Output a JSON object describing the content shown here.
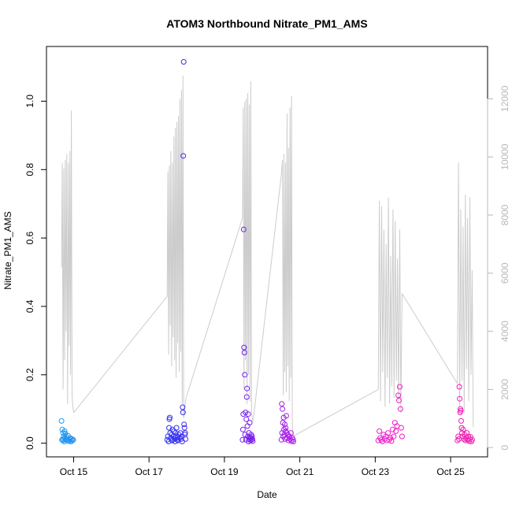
{
  "chart_data": {
    "type": "scatter",
    "title": "ATOM3 Northbound Nitrate_PM1_AMS",
    "xlabel": "Date",
    "ylabel": "Nitrate_PM1_AMS",
    "x_ticks": [
      {
        "value": 14.87,
        "label": "Oct 15"
      },
      {
        "value": 16.87,
        "label": "Oct 17"
      },
      {
        "value": 18.87,
        "label": "Oct 19"
      },
      {
        "value": 20.87,
        "label": "Oct 21"
      },
      {
        "value": 22.87,
        "label": "Oct 23"
      },
      {
        "value": 24.87,
        "label": "Oct 25"
      }
    ],
    "xlim": [
      14.15,
      25.85
    ],
    "ylim": [
      -0.04,
      1.16
    ],
    "y_ticks": [
      0.0,
      0.2,
      0.4,
      0.6,
      0.8,
      1.0
    ],
    "y_tick_labels": [
      "0.0",
      "0.2",
      "0.4",
      "0.6",
      "0.8",
      "1.0"
    ],
    "y2_lim": [
      -320,
      13800
    ],
    "y2_ticks": [
      0,
      2000,
      4000,
      6000,
      8000,
      10000,
      12000
    ],
    "y2_tick_labels": [
      "0",
      "2000",
      "4000",
      "6000",
      "8000",
      "10000",
      "12000"
    ],
    "colors": {
      "altitude_line": "#cccccc",
      "right_axis": "#b8b8b8",
      "points_gradient": [
        "#1e9cf0",
        "#1f3cf0",
        "#5a1ef0",
        "#c41ee8",
        "#f01ec8",
        "#f01eb0"
      ]
    },
    "altitude_series": {
      "name": "altitude",
      "flights": [
        {
          "x": [
            14.55,
            14.57,
            14.59,
            14.61,
            14.63,
            14.65,
            14.67,
            14.69,
            14.71,
            14.73,
            14.75,
            14.77,
            14.79,
            14.81,
            14.83,
            14.85,
            14.87
          ],
          "y": [
            6200,
            9800,
            2000,
            9600,
            3000,
            9900,
            4000,
            10100,
            1500,
            9800,
            3500,
            10200,
            2500,
            11600,
            1800,
            1400,
            1200
          ]
        },
        {
          "x": [
            17.35,
            17.37,
            17.39,
            17.41,
            17.43,
            17.45,
            17.47,
            17.49,
            17.51,
            17.53,
            17.55,
            17.57,
            17.59,
            17.61,
            17.63,
            17.65,
            17.67,
            17.69,
            17.71,
            17.73,
            17.75,
            17.77,
            17.79,
            17.81,
            17.83,
            17.85
          ],
          "y": [
            5200,
            9500,
            3200,
            9700,
            4200,
            10200,
            2800,
            9800,
            3800,
            10700,
            3000,
            11000,
            2400,
            11200,
            3600,
            11400,
            2600,
            12000,
            3300,
            12300,
            1500,
            12800,
            1000,
            1200,
            1500,
            1700
          ]
        },
        {
          "x": [
            19.35,
            19.37,
            19.39,
            19.41,
            19.43,
            19.45,
            19.47,
            19.49,
            19.51,
            19.53,
            19.55,
            19.57,
            19.59,
            19.61,
            19.63
          ],
          "y": [
            7900,
            11700,
            2000,
            11900,
            3000,
            12000,
            1500,
            12200,
            2500,
            11800,
            1600,
            12600,
            1200,
            1000,
            900
          ]
        },
        {
          "x": [
            20.38,
            20.41,
            20.43,
            20.45,
            20.47,
            20.49,
            20.51,
            20.53,
            20.55,
            20.57,
            20.59,
            20.61,
            20.63,
            20.65,
            20.67,
            20.69,
            20.71
          ],
          "y": [
            9400,
            9900,
            1800,
            10100,
            2600,
            9800,
            1900,
            11500,
            2800,
            10300,
            1600,
            11700,
            2400,
            12100,
            800,
            500,
            400
          ]
        },
        {
          "x": [
            22.95,
            22.98,
            23.01,
            23.04,
            23.07,
            23.1,
            23.13,
            23.16,
            23.19,
            23.22,
            23.25,
            23.28,
            23.31,
            23.34,
            23.37,
            23.4,
            23.43,
            23.46,
            23.49,
            23.52,
            23.55,
            23.58
          ],
          "y": [
            2000,
            8500,
            1600,
            8300,
            2600,
            7500,
            1400,
            7000,
            2400,
            8600,
            1500,
            6600,
            2100,
            8200,
            1700,
            7800,
            2300,
            6500,
            1600,
            7500,
            1200,
            5300
          ]
        },
        {
          "x": [
            25.05,
            25.08,
            25.11,
            25.14,
            25.17,
            25.2,
            25.23,
            25.26,
            25.29,
            25.32,
            25.35,
            25.38,
            25.41,
            25.44,
            25.47
          ],
          "y": [
            2200,
            9800,
            1400,
            8200,
            2300,
            7600,
            1200,
            8700,
            2700,
            7900,
            1600,
            8600,
            2500,
            6100,
            700
          ]
        }
      ],
      "connectors": [
        {
          "x": [
            14.87,
            17.35
          ],
          "y": [
            1200,
            5200
          ]
        },
        {
          "x": [
            17.85,
            19.35
          ],
          "y": [
            1700,
            7900
          ]
        },
        {
          "x": [
            19.63,
            20.38
          ],
          "y": [
            900,
            9400
          ]
        },
        {
          "x": [
            20.71,
            22.95
          ],
          "y": [
            400,
            2000
          ]
        },
        {
          "x": [
            23.58,
            25.05
          ],
          "y": [
            5300,
            2200
          ]
        }
      ]
    },
    "series": [
      {
        "flight": 1,
        "x": [
          14.55,
          14.56,
          14.57,
          14.58,
          14.59,
          14.6,
          14.61,
          14.62,
          14.63,
          14.64,
          14.65,
          14.66,
          14.67,
          14.68,
          14.7,
          14.72,
          14.74,
          14.76,
          14.78,
          14.8,
          14.82,
          14.84,
          14.86
        ],
        "y": [
          0.065,
          0.01,
          0.04,
          0.008,
          0.03,
          0.012,
          0.02,
          0.005,
          0.035,
          0.015,
          0.028,
          0.01,
          0.012,
          0.018,
          0.008,
          0.022,
          0.006,
          0.01,
          0.015,
          0.005,
          0.012,
          0.008,
          0.01
        ]
      },
      {
        "flight": 2,
        "x": [
          17.35,
          17.37,
          17.39,
          17.4,
          17.41,
          17.42,
          17.43,
          17.45,
          17.47,
          17.48,
          17.49,
          17.5,
          17.52,
          17.53,
          17.55,
          17.56,
          17.57,
          17.58,
          17.6,
          17.62,
          17.63,
          17.64,
          17.66,
          17.68,
          17.7,
          17.72,
          17.74,
          17.75,
          17.76,
          17.77,
          17.78,
          17.79,
          17.8,
          17.81,
          17.82,
          17.83,
          17.84
        ],
        "y": [
          0.01,
          0.02,
          0.005,
          0.045,
          0.07,
          0.075,
          0.03,
          0.015,
          0.025,
          0.008,
          0.04,
          0.01,
          0.02,
          0.035,
          0.012,
          0.005,
          0.03,
          0.02,
          0.045,
          0.01,
          0.018,
          0.008,
          0.025,
          0.015,
          0.03,
          0.012,
          0.02,
          0.005,
          0.105,
          0.09,
          0.84,
          1.115,
          0.055,
          0.045,
          0.025,
          0.03,
          0.012
        ]
      },
      {
        "flight": 3,
        "x": [
          19.35,
          19.36,
          19.37,
          19.38,
          19.39,
          19.4,
          19.41,
          19.42,
          19.43,
          19.44,
          19.45,
          19.46,
          19.47,
          19.48,
          19.49,
          19.5,
          19.51,
          19.52,
          19.53,
          19.54,
          19.55,
          19.56,
          19.57,
          19.58,
          19.59,
          19.6,
          19.61,
          19.62
        ],
        "y": [
          0.01,
          0.04,
          0.085,
          0.625,
          0.28,
          0.265,
          0.2,
          0.025,
          0.09,
          0.01,
          0.07,
          0.135,
          0.16,
          0.05,
          0.02,
          0.085,
          0.005,
          0.03,
          0.012,
          0.06,
          0.018,
          0.008,
          0.015,
          0.025,
          0.01,
          0.02,
          0.012,
          0.006
        ]
      },
      {
        "flight": 4,
        "x": [
          20.38,
          20.39,
          20.4,
          20.41,
          20.42,
          20.43,
          20.44,
          20.45,
          20.46,
          20.47,
          20.48,
          20.49,
          20.5,
          20.51,
          20.52,
          20.53,
          20.55,
          20.57,
          20.59,
          20.61,
          20.63,
          20.65,
          20.67,
          20.69,
          20.7
        ],
        "y": [
          0.01,
          0.115,
          0.03,
          0.1,
          0.06,
          0.02,
          0.075,
          0.04,
          0.025,
          0.055,
          0.012,
          0.045,
          0.035,
          0.08,
          0.03,
          0.015,
          0.025,
          0.008,
          0.02,
          0.012,
          0.03,
          0.006,
          0.015,
          0.01,
          0.005
        ]
      },
      {
        "flight": 5,
        "x": [
          22.95,
          22.98,
          23.0,
          23.03,
          23.06,
          23.09,
          23.12,
          23.15,
          23.18,
          23.21,
          23.24,
          23.27,
          23.3,
          23.33,
          23.36,
          23.39,
          23.42,
          23.45,
          23.48,
          23.5,
          23.52,
          23.54,
          23.56,
          23.58
        ],
        "y": [
          0.008,
          0.035,
          0.015,
          0.01,
          0.005,
          0.025,
          0.012,
          0.02,
          0.008,
          0.03,
          0.01,
          0.015,
          0.006,
          0.04,
          0.02,
          0.06,
          0.035,
          0.05,
          0.14,
          0.125,
          0.165,
          0.1,
          0.045,
          0.02
        ]
      },
      {
        "flight": 6,
        "x": [
          25.05,
          25.07,
          25.09,
          25.1,
          25.11,
          25.12,
          25.13,
          25.14,
          25.15,
          25.16,
          25.17,
          25.18,
          25.2,
          25.22,
          25.24,
          25.26,
          25.28,
          25.3,
          25.32,
          25.34,
          25.36,
          25.38,
          25.4,
          25.42,
          25.44
        ],
        "y": [
          0.008,
          0.02,
          0.012,
          0.165,
          0.13,
          0.09,
          0.1,
          0.095,
          0.065,
          0.045,
          0.03,
          0.02,
          0.04,
          0.012,
          0.025,
          0.008,
          0.015,
          0.03,
          0.01,
          0.02,
          0.006,
          0.012,
          0.018,
          0.005,
          0.01
        ]
      }
    ]
  }
}
